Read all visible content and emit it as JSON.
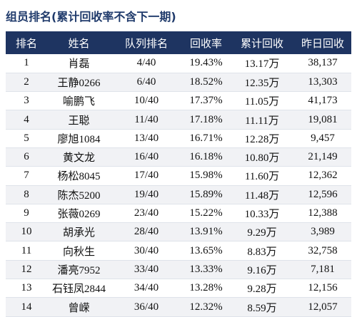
{
  "header": {
    "title": "组员排名(累计回收率不含下一期)"
  },
  "table": {
    "columns": [
      "排名",
      "姓名",
      "队列排名",
      "回收率",
      "累计回收",
      "昨日回收"
    ],
    "rows": [
      [
        "1",
        "肖磊",
        "4/40",
        "19.43%",
        "13.17万",
        "38,137"
      ],
      [
        "2",
        "王静0266",
        "6/40",
        "18.52%",
        "12.35万",
        "13,303"
      ],
      [
        "3",
        "喻鹏飞",
        "10/40",
        "17.37%",
        "11.05万",
        "41,173"
      ],
      [
        "4",
        "王聪",
        "11/40",
        "17.18%",
        "11.11万",
        "19,081"
      ],
      [
        "5",
        "廖旭1084",
        "13/40",
        "16.71%",
        "12.28万",
        "9,457"
      ],
      [
        "6",
        "黄文龙",
        "16/40",
        "16.18%",
        "10.80万",
        "21,149"
      ],
      [
        "7",
        "杨松8045",
        "17/40",
        "15.98%",
        "11.60万",
        "12,362"
      ],
      [
        "8",
        "陈杰5200",
        "19/40",
        "15.89%",
        "11.48万",
        "12,596"
      ],
      [
        "9",
        "张薇0269",
        "23/40",
        "15.22%",
        "10.33万",
        "12,388"
      ],
      [
        "10",
        "胡承光",
        "28/40",
        "13.91%",
        "9.29万",
        "3,989"
      ],
      [
        "11",
        "向秋生",
        "30/40",
        "13.65%",
        "8.83万",
        "32,758"
      ],
      [
        "12",
        "潘亮7952",
        "33/40",
        "13.33%",
        "9.16万",
        "7,181"
      ],
      [
        "13",
        "石钰凤2844",
        "34/40",
        "13.28%",
        "9.28万",
        "12,156"
      ],
      [
        "14",
        "曾嵘",
        "36/40",
        "12.32%",
        "8.59万",
        "12,057"
      ]
    ]
  }
}
